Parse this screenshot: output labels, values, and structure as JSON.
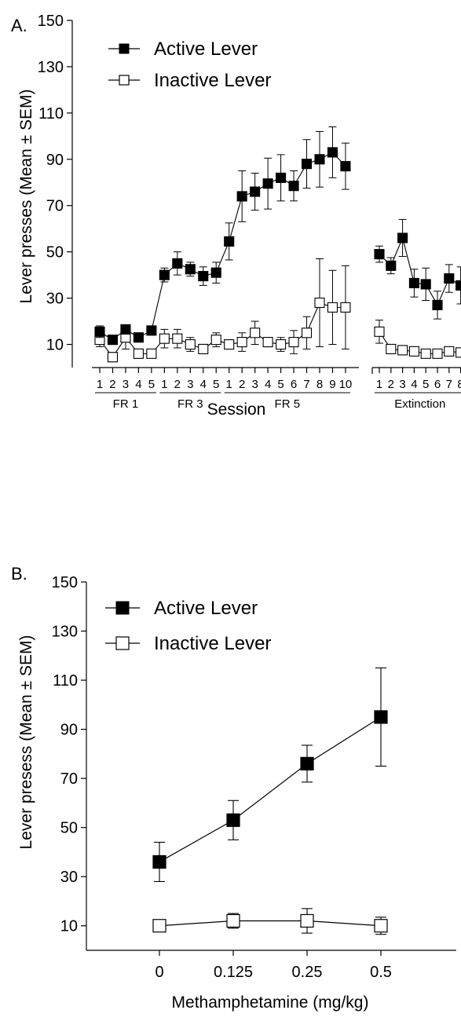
{
  "chart_data": [
    {
      "panel": "A.",
      "type": "line",
      "ylabel": "Lever presses (Mean ± SEM)",
      "xlabel": "Session",
      "ylim": [
        0,
        150
      ],
      "yticks": [
        10,
        30,
        50,
        70,
        90,
        110,
        130,
        150
      ],
      "legend": {
        "placement": "top-left",
        "entries": [
          "Active Lever",
          "Inactive Lever"
        ]
      },
      "grid": false,
      "x_tick_labels": [
        "1",
        "2",
        "3",
        "4",
        "5",
        "1",
        "2",
        "3",
        "4",
        "5",
        "1",
        "2",
        "3",
        "4",
        "5",
        "6",
        "7",
        "8",
        "9",
        "10",
        "1",
        "2",
        "3",
        "4",
        "5",
        "6",
        "7",
        "8"
      ],
      "phases": [
        {
          "label": "FR 1",
          "sessions": 5
        },
        {
          "label": "FR 3",
          "sessions": 5
        },
        {
          "label": "FR 5",
          "sessions": 10
        },
        {
          "label": "Extinction",
          "sessions": 8
        }
      ],
      "series": [
        {
          "name": "Active Lever",
          "marker": "filled-square",
          "values": [
            15.5,
            12,
            16.5,
            13,
            16,
            40,
            45,
            42.5,
            39.5,
            41,
            54.5,
            74,
            76,
            79.5,
            82,
            78.5,
            88,
            90,
            93,
            87,
            49,
            44,
            56,
            36.5,
            36,
            27,
            38.5,
            35.5
          ],
          "sem": [
            2.5,
            1.5,
            2,
            1.5,
            1.5,
            3,
            5,
            3,
            4,
            4.5,
            8,
            11,
            8,
            11,
            10,
            6.5,
            10.5,
            12,
            11,
            10,
            3.5,
            3.5,
            8,
            6,
            7,
            6,
            6,
            8
          ]
        },
        {
          "name": "Inactive Lever",
          "marker": "open-square",
          "values": [
            12,
            4.5,
            13,
            6,
            6,
            12.5,
            12.5,
            10,
            8,
            12,
            10,
            11,
            15,
            11,
            10,
            11,
            15,
            28,
            26,
            26,
            15.5,
            8,
            7.5,
            7,
            6,
            6,
            7,
            6.5
          ],
          "sem": [
            3,
            2,
            5,
            2,
            1.5,
            4,
            4,
            3,
            2,
            3,
            2,
            4,
            5,
            2,
            3,
            5,
            7,
            19,
            16,
            18,
            5,
            2,
            2,
            1,
            1,
            1,
            2,
            1
          ]
        }
      ]
    },
    {
      "panel": "B.",
      "type": "line",
      "ylabel": "Lever presess (Mean ± SEM)",
      "xlabel": "Methamphetamine (mg/kg)",
      "ylim": [
        0,
        150
      ],
      "yticks": [
        10,
        30,
        50,
        70,
        90,
        110,
        130,
        150
      ],
      "legend": {
        "placement": "top-left",
        "entries": [
          "Active Lever",
          "Inactive Lever"
        ]
      },
      "grid": false,
      "categories": [
        "0",
        "0.125",
        "0.25",
        "0.5"
      ],
      "series": [
        {
          "name": "Active Lever",
          "marker": "filled-square",
          "values": [
            36,
            53,
            76,
            95
          ],
          "sem": [
            8,
            8,
            7.5,
            20
          ]
        },
        {
          "name": "Inactive Lever",
          "marker": "open-square",
          "values": [
            10,
            12,
            12,
            10
          ],
          "sem": [
            1,
            3,
            5,
            3.5
          ]
        }
      ]
    }
  ]
}
